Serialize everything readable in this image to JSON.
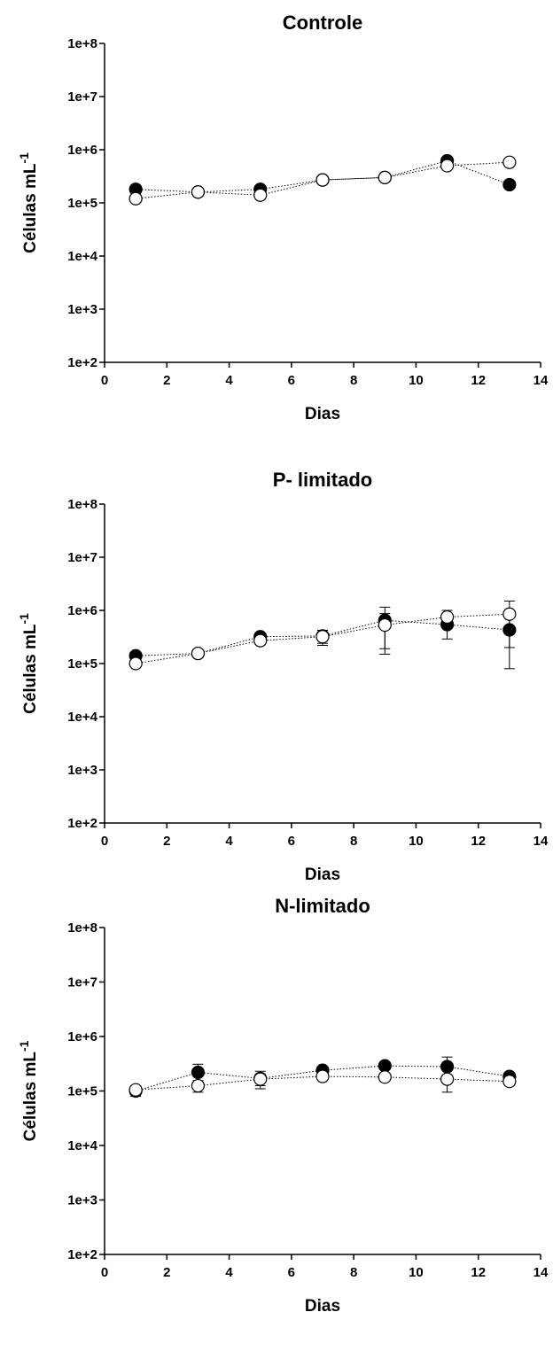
{
  "chart_data": [
    {
      "type": "scatter",
      "title": "Controle",
      "xlabel": "Dias",
      "ylabel": "Células mL",
      "ylabel_sup": "-1",
      "xlim": [
        0,
        14
      ],
      "ylim": [
        100,
        100000000
      ],
      "yscale": "log",
      "xticks": [
        0,
        2,
        4,
        6,
        8,
        10,
        12,
        14
      ],
      "yticks": [
        "1e+2",
        "1e+3",
        "1e+4",
        "1e+5",
        "1e+6",
        "1e+7",
        "1e+8"
      ],
      "line_style": "dotted",
      "series": [
        {
          "marker": "filled-circle",
          "x": [
            1,
            3,
            5,
            7,
            9,
            11,
            13
          ],
          "y": [
            180000,
            160000,
            180000,
            270000,
            300000,
            620000,
            220000
          ],
          "err": [
            0,
            0,
            0,
            0,
            0,
            0,
            0
          ]
        },
        {
          "marker": "open-circle",
          "x": [
            1,
            3,
            5,
            7,
            9,
            11,
            13
          ],
          "y": [
            120000,
            160000,
            140000,
            270000,
            300000,
            500000,
            580000
          ],
          "err": [
            0,
            0,
            0,
            0,
            0,
            0,
            0
          ]
        }
      ]
    },
    {
      "type": "scatter",
      "title": "P- limitado",
      "xlabel": "Dias",
      "ylabel": "Células mL",
      "ylabel_sup": "-1",
      "xlim": [
        0,
        14
      ],
      "ylim": [
        100,
        100000000
      ],
      "yscale": "log",
      "xticks": [
        0,
        2,
        4,
        6,
        8,
        10,
        12,
        14
      ],
      "yticks": [
        "1e+2",
        "1e+3",
        "1e+4",
        "1e+5",
        "1e+6",
        "1e+7",
        "1e+8"
      ],
      "line_style": "dotted",
      "series": [
        {
          "marker": "filled-circle",
          "x": [
            1,
            3,
            5,
            7,
            9,
            11,
            13
          ],
          "y": [
            140000,
            155000,
            320000,
            330000,
            650000,
            540000,
            430000
          ],
          "err": [
            20000,
            15000,
            40000,
            90000,
            500000,
            250000,
            350000
          ]
        },
        {
          "marker": "open-circle",
          "x": [
            1,
            3,
            5,
            7,
            9,
            11,
            13
          ],
          "y": [
            100000,
            155000,
            270000,
            320000,
            530000,
            750000,
            850000
          ],
          "err": [
            10000,
            15000,
            30000,
            100000,
            340000,
            250000,
            650000
          ]
        }
      ]
    },
    {
      "type": "scatter",
      "title": "N-limitado",
      "xlabel": "Dias",
      "ylabel": "Células mL",
      "ylabel_sup": "-1",
      "xlim": [
        0,
        14
      ],
      "ylim": [
        100,
        100000000
      ],
      "yscale": "log",
      "xticks": [
        0,
        2,
        4,
        6,
        8,
        10,
        12,
        14
      ],
      "yticks": [
        "1e+2",
        "1e+3",
        "1e+4",
        "1e+5",
        "1e+6",
        "1e+7",
        "1e+8"
      ],
      "line_style": "dotted",
      "series": [
        {
          "marker": "filled-circle",
          "x": [
            1,
            3,
            5,
            7,
            9,
            11,
            13
          ],
          "y": [
            100000,
            220000,
            170000,
            240000,
            290000,
            280000,
            185000
          ],
          "err": [
            20000,
            90000,
            60000,
            40000,
            40000,
            140000,
            30000
          ]
        },
        {
          "marker": "open-circle",
          "x": [
            1,
            3,
            5,
            7,
            9,
            11,
            13
          ],
          "y": [
            105000,
            125000,
            165000,
            185000,
            180000,
            165000,
            150000
          ],
          "err": [
            20000,
            30000,
            40000,
            20000,
            20000,
            70000,
            20000
          ]
        }
      ]
    }
  ]
}
